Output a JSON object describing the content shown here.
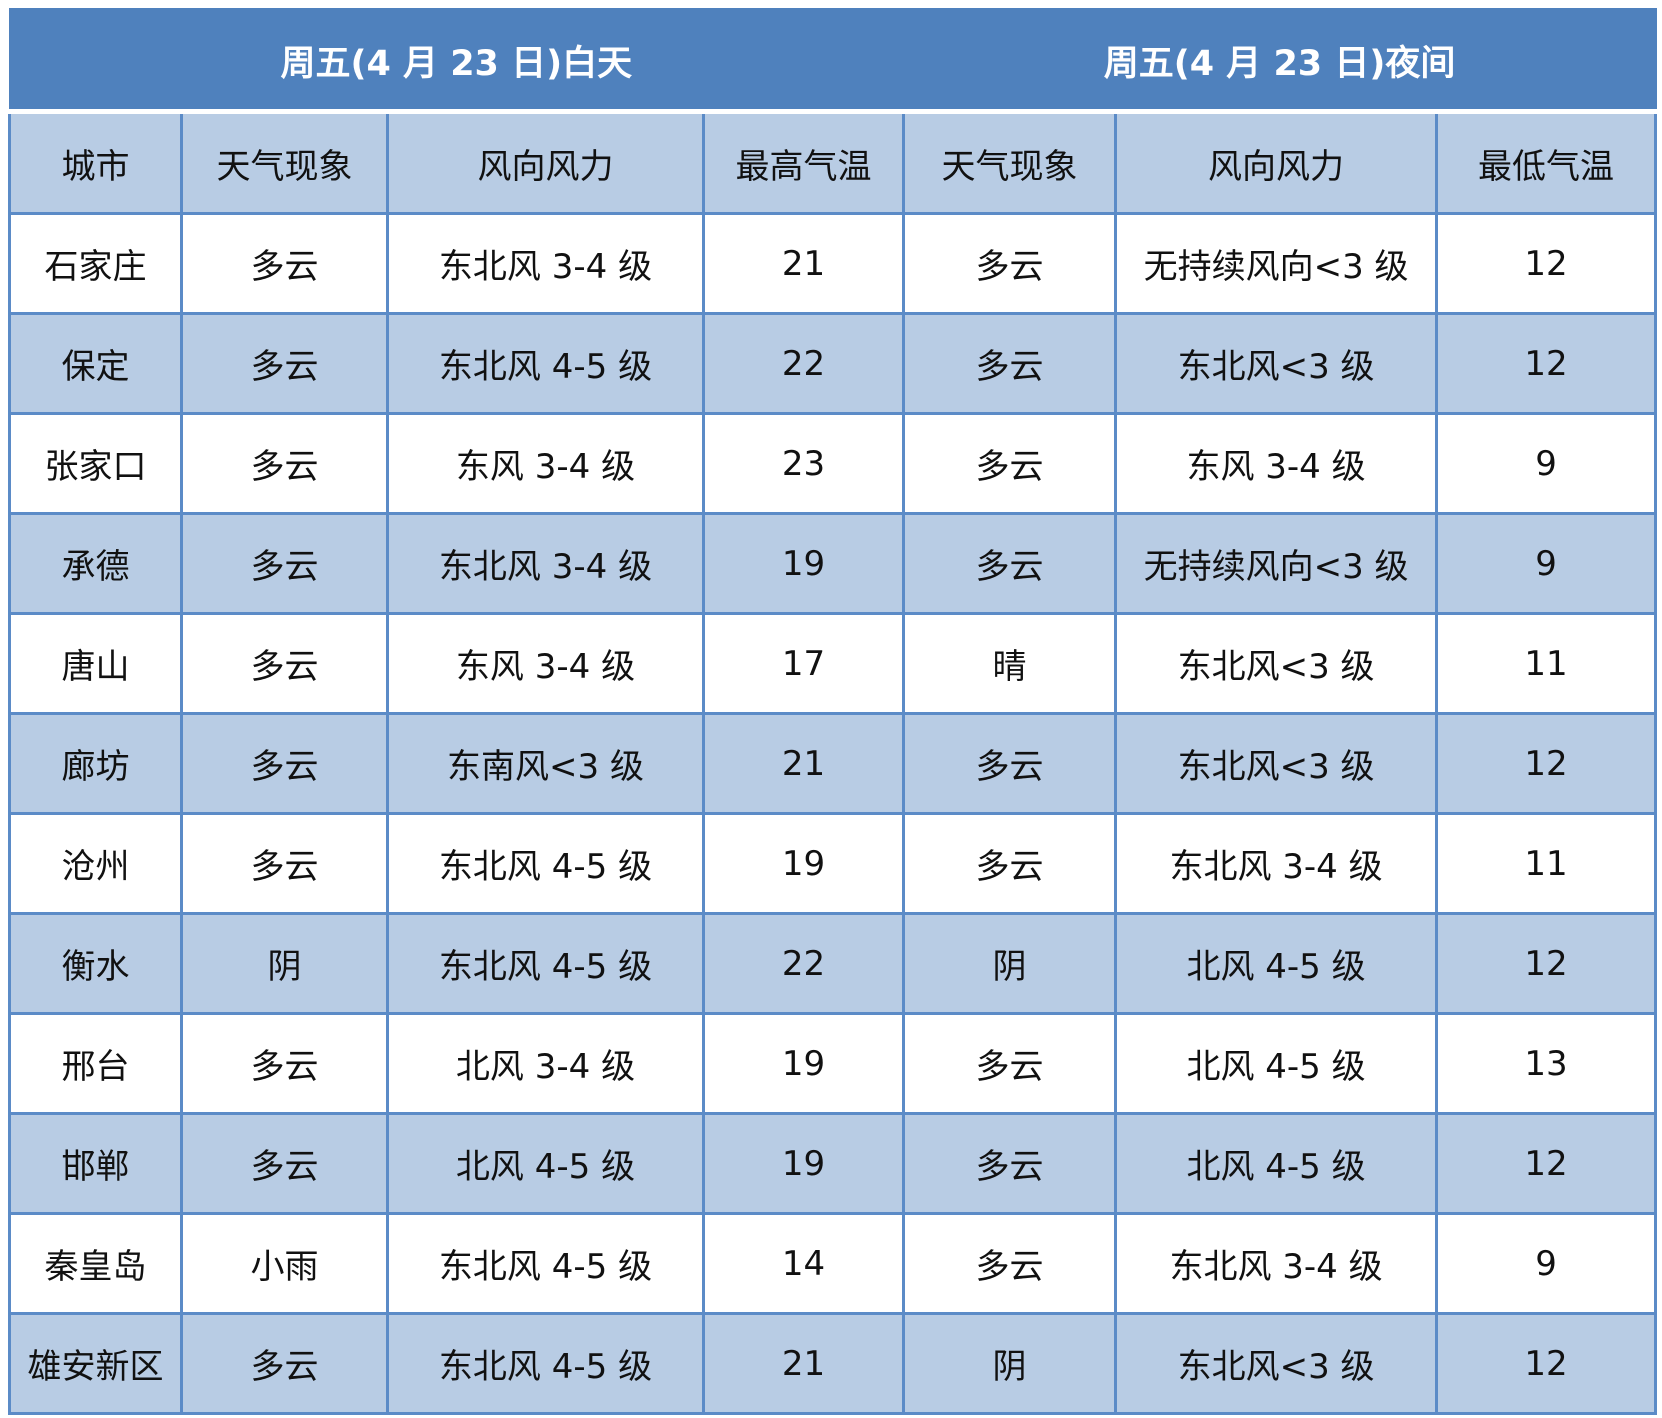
{
  "colors": {
    "header": "#4f81bd",
    "stripe": "#b8cce4",
    "border": "#5b8bc7"
  },
  "groups": [
    "周五(4 月 23 日)白天",
    "周五(4 月 23 日)夜间"
  ],
  "columns": [
    "城市",
    "天气现象",
    "风向风力",
    "最高气温",
    "天气现象",
    "风向风力",
    "最低气温"
  ],
  "rows": [
    [
      "石家庄",
      "多云",
      "东北风 3-4 级",
      "21",
      "多云",
      "无持续风向<3 级",
      "12"
    ],
    [
      "保定",
      "多云",
      "东北风 4-5 级",
      "22",
      "多云",
      "东北风<3 级",
      "12"
    ],
    [
      "张家口",
      "多云",
      "东风 3-4 级",
      "23",
      "多云",
      "东风 3-4 级",
      "9"
    ],
    [
      "承德",
      "多云",
      "东北风 3-4 级",
      "19",
      "多云",
      "无持续风向<3 级",
      "9"
    ],
    [
      "唐山",
      "多云",
      "东风 3-4 级",
      "17",
      "晴",
      "东北风<3 级",
      "11"
    ],
    [
      "廊坊",
      "多云",
      "东南风<3 级",
      "21",
      "多云",
      "东北风<3 级",
      "12"
    ],
    [
      "沧州",
      "多云",
      "东北风 4-5 级",
      "19",
      "多云",
      "东北风 3-4 级",
      "11"
    ],
    [
      "衡水",
      "阴",
      "东北风 4-5 级",
      "22",
      "阴",
      "北风 4-5 级",
      "12"
    ],
    [
      "邢台",
      "多云",
      "北风 3-4 级",
      "19",
      "多云",
      "北风 4-5 级",
      "13"
    ],
    [
      "邯郸",
      "多云",
      "北风 4-5 级",
      "19",
      "多云",
      "北风 4-5 级",
      "12"
    ],
    [
      "秦皇岛",
      "小雨",
      "东北风 4-5 级",
      "14",
      "多云",
      "东北风 3-4 级",
      "9"
    ],
    [
      "雄安新区",
      "多云",
      "东北风 4-5 级",
      "21",
      "阴",
      "东北风<3 级",
      "12"
    ]
  ]
}
